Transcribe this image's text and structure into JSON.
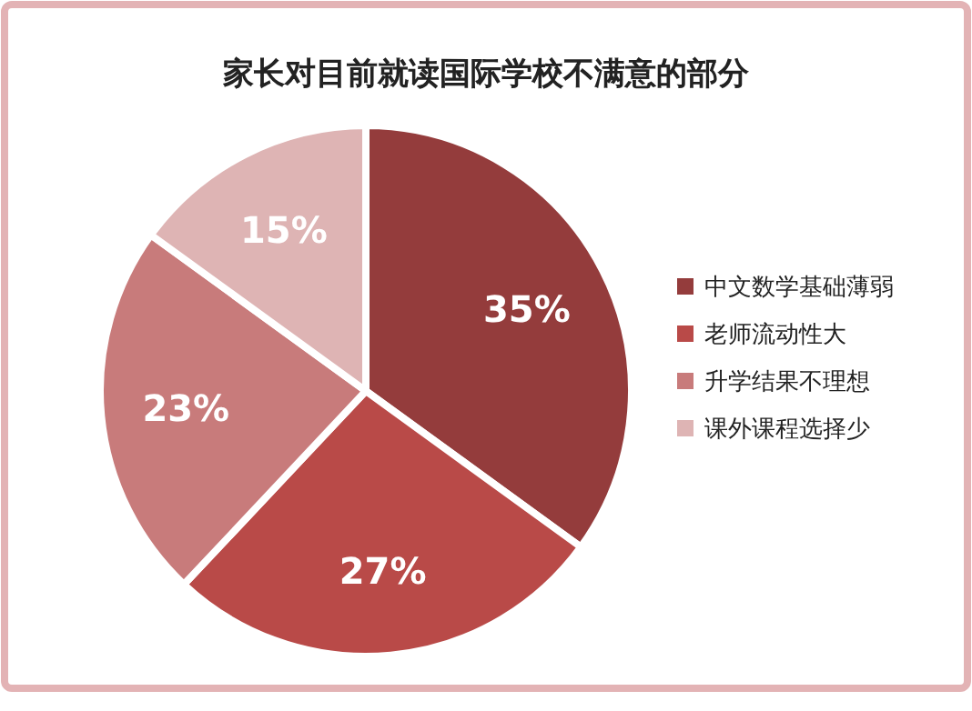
{
  "chart_data": {
    "type": "pie",
    "title": "家长对目前就读国际学校不满意的部分",
    "categories": [
      "中文数学基础薄弱",
      "老师流动性大",
      "升学结果不理想",
      "课外课程选择少"
    ],
    "values": [
      35,
      27,
      23,
      15
    ],
    "colors": [
      "#943c3c",
      "#b94a48",
      "#c87b7b",
      "#deb4b4"
    ],
    "value_labels": [
      "35%",
      "27%",
      "23%",
      "15%"
    ],
    "legend": "right"
  }
}
